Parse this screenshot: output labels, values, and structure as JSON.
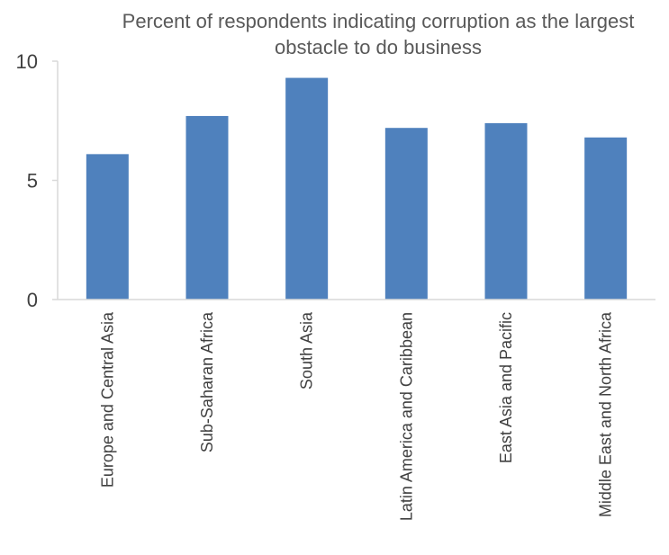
{
  "chart_data": {
    "type": "bar",
    "title_lines": [
      "Percent of respondents indicating corruption as the largest",
      "obstacle to do business"
    ],
    "categories": [
      "Europe and Central Asia",
      "Sub-Saharan Africa",
      "South Asia",
      "Latin America and Caribbean",
      "East Asia and Pacific",
      "Middle East and North Africa"
    ],
    "values": [
      6.1,
      7.7,
      9.3,
      7.2,
      7.4,
      6.8
    ],
    "ylim": [
      0,
      10
    ],
    "yticks": [
      0,
      5,
      10
    ],
    "grid": false,
    "legend": "none",
    "colors": {
      "bar": "#4F81BD",
      "axis": "#D9D9D9"
    }
  }
}
